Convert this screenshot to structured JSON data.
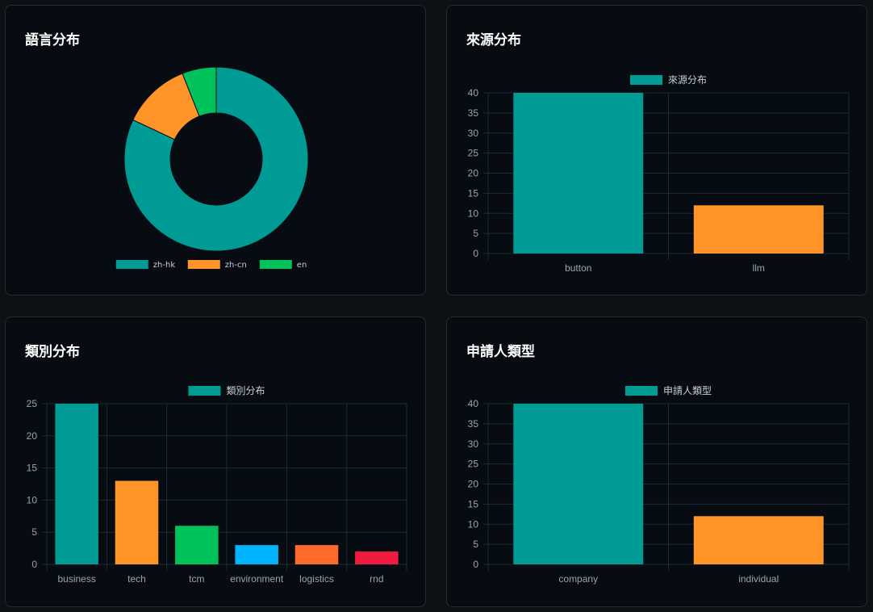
{
  "colors": {
    "teal": "#009b95",
    "orange": "#ff9529",
    "green": "#00c25a",
    "blue": "#00b3ff",
    "red_orange": "#ff6a2a",
    "crimson": "#ef1c40",
    "grid": "#1f2a33",
    "tick_text": "#9aa3ad",
    "card_bg": "#070c12",
    "page_bg": "#0d1114"
  },
  "cards": {
    "language": {
      "title": "語言分布"
    },
    "source": {
      "title": "來源分布"
    },
    "category": {
      "title": "類別分布"
    },
    "applicant": {
      "title": "申請人類型"
    }
  },
  "chart_data": [
    {
      "id": "language",
      "type": "pie",
      "donut": true,
      "labels": [
        "zh-hk",
        "zh-cn",
        "en"
      ],
      "values": [
        82,
        12,
        6
      ],
      "colors": [
        "#009b95",
        "#ff9529",
        "#00c25a"
      ],
      "legend": "bottom"
    },
    {
      "id": "source",
      "type": "bar",
      "categories": [
        "button",
        "llm"
      ],
      "series": [
        {
          "name": "來源分布",
          "values": [
            40,
            12
          ]
        }
      ],
      "colors": [
        "#009b95",
        "#ff9529"
      ],
      "ylim": [
        0,
        40
      ],
      "yticks": [
        0,
        5,
        10,
        15,
        20,
        25,
        30,
        35,
        40
      ],
      "grid": true,
      "legend": "top"
    },
    {
      "id": "category",
      "type": "bar",
      "categories": [
        "business",
        "tech",
        "tcm",
        "environment",
        "logistics",
        "rnd"
      ],
      "series": [
        {
          "name": "類別分布",
          "values": [
            25,
            13,
            6,
            3,
            3,
            2
          ]
        }
      ],
      "colors": [
        "#009b95",
        "#ff9529",
        "#00c25a",
        "#00b3ff",
        "#ff6a2a",
        "#ef1c40"
      ],
      "ylim": [
        0,
        25
      ],
      "yticks": [
        0,
        5,
        10,
        15,
        20,
        25
      ],
      "grid": true,
      "legend": "top"
    },
    {
      "id": "applicant",
      "type": "bar",
      "categories": [
        "company",
        "individual"
      ],
      "series": [
        {
          "name": "申請人類型",
          "values": [
            40,
            12
          ]
        }
      ],
      "colors": [
        "#009b95",
        "#ff9529"
      ],
      "ylim": [
        0,
        40
      ],
      "yticks": [
        0,
        5,
        10,
        15,
        20,
        25,
        30,
        35,
        40
      ],
      "grid": true,
      "legend": "top"
    }
  ]
}
